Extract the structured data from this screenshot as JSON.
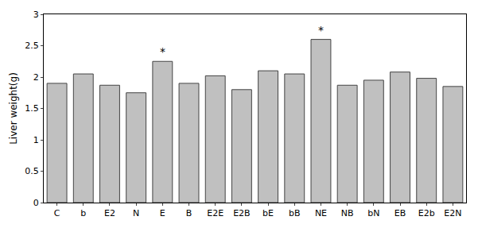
{
  "chart_data": {
    "type": "bar",
    "y_label": "Liver weight(g)",
    "categories": [
      "C",
      "b",
      "E2",
      "N",
      "E",
      "B",
      "E2E",
      "E2B",
      "bE",
      "bB",
      "NE",
      "NB",
      "bN",
      "EB",
      "E2b",
      "E2N"
    ],
    "values": [
      1.9,
      2.05,
      1.87,
      1.75,
      2.25,
      1.9,
      2.02,
      1.8,
      2.1,
      2.05,
      2.6,
      1.87,
      1.95,
      2.08,
      1.98,
      1.85
    ],
    "color": "#c0c0c0",
    "ylim": [
      0,
      3
    ],
    "yticks": [
      0,
      0.5,
      1,
      1.5,
      2,
      2.5,
      3
    ],
    "grid": false,
    "annotations": [
      {
        "category": "E",
        "text": "*"
      },
      {
        "category": "NE",
        "text": "*"
      }
    ]
  }
}
